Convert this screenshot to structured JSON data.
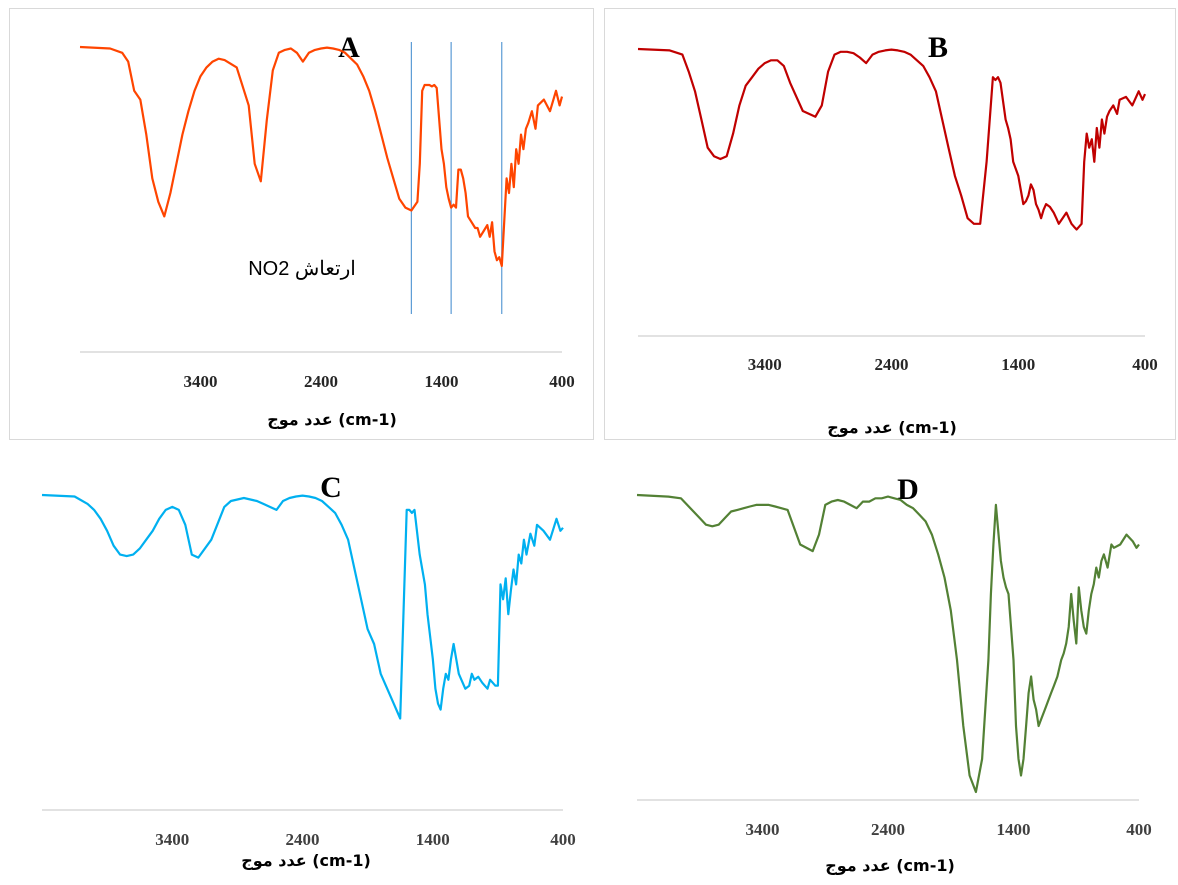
{
  "chart_data": [
    {
      "id": "A",
      "type": "line",
      "title": "A",
      "xlabel": "(cm-1) عدد موج",
      "xlim": [
        4400,
        400
      ],
      "x_ticks": [
        3400,
        2400,
        1400,
        400
      ],
      "x_tick_labels": [
        "3400",
        "2400",
        "1400",
        "400"
      ],
      "grid": false,
      "color": "#FF4500",
      "annotation": "ارتعاش NO2",
      "marker_lines": [
        1650,
        1320,
        900
      ],
      "series": [
        {
          "x": [
            4400,
            4150,
            4050,
            4000,
            3950,
            3900,
            3850,
            3800,
            3750,
            3700,
            3650,
            3600,
            3550,
            3500,
            3450,
            3400,
            3350,
            3300,
            3250,
            3200,
            3100,
            3000,
            2950,
            2900,
            2850,
            2800,
            2750,
            2700,
            2650,
            2600,
            2550,
            2500,
            2450,
            2400,
            2350,
            2300,
            2250,
            2200,
            2150,
            2100,
            2050,
            2000,
            1950,
            1900,
            1850,
            1800,
            1750,
            1700,
            1650,
            1600,
            1580,
            1560,
            1540,
            1500,
            1480,
            1460,
            1440,
            1400,
            1380,
            1360,
            1340,
            1320,
            1300,
            1280,
            1260,
            1240,
            1220,
            1200,
            1180,
            1150,
            1120,
            1100,
            1080,
            1050,
            1020,
            1000,
            980,
            960,
            940,
            920,
            900,
            880,
            860,
            840,
            820,
            800,
            780,
            760,
            740,
            720,
            700,
            680,
            650,
            620,
            600,
            550,
            500,
            450,
            420,
            400
          ],
          "y": [
            100,
            99.5,
            98,
            95,
            85,
            82,
            70,
            55,
            47,
            42,
            50,
            60,
            70,
            78,
            85,
            90,
            93,
            95,
            96,
            95.5,
            93,
            80,
            60,
            54,
            75,
            92,
            98,
            99,
            99.5,
            98,
            95,
            98,
            99,
            99.5,
            99.8,
            99.5,
            99,
            98,
            96,
            94,
            90,
            85,
            78,
            70,
            62,
            55,
            48,
            45,
            44,
            47,
            60,
            85,
            87,
            87,
            86.5,
            87,
            86,
            65,
            60,
            52,
            48,
            45,
            46,
            45,
            58,
            58,
            55,
            50,
            42,
            40,
            38,
            38,
            35,
            37,
            39,
            35,
            40,
            30,
            27,
            28,
            25,
            40,
            55,
            50,
            60,
            52,
            65,
            60,
            70,
            65,
            72,
            74,
            78,
            72,
            80,
            82,
            78,
            85,
            80,
            83
          ]
        }
      ]
    },
    {
      "id": "B",
      "type": "line",
      "title": "B",
      "xlabel": "(cm-1) عدد موج",
      "xlim": [
        4400,
        400
      ],
      "x_ticks": [
        3400,
        2400,
        1400,
        400
      ],
      "x_tick_labels": [
        "3400",
        "2400",
        "1400",
        "400"
      ],
      "grid": false,
      "color": "#C00000",
      "series": [
        {
          "x": [
            4400,
            4150,
            4050,
            4000,
            3950,
            3900,
            3850,
            3800,
            3750,
            3700,
            3650,
            3600,
            3550,
            3500,
            3450,
            3400,
            3350,
            3300,
            3250,
            3200,
            3100,
            3000,
            2950,
            2900,
            2850,
            2800,
            2750,
            2700,
            2650,
            2600,
            2550,
            2500,
            2450,
            2400,
            2350,
            2300,
            2250,
            2200,
            2150,
            2100,
            2050,
            2000,
            1950,
            1900,
            1850,
            1800,
            1750,
            1700,
            1650,
            1600,
            1580,
            1560,
            1540,
            1500,
            1480,
            1460,
            1440,
            1400,
            1380,
            1360,
            1340,
            1320,
            1300,
            1280,
            1260,
            1240,
            1220,
            1200,
            1180,
            1150,
            1120,
            1100,
            1080,
            1050,
            1020,
            1000,
            980,
            960,
            940,
            920,
            900,
            880,
            860,
            840,
            820,
            800,
            780,
            760,
            740,
            720,
            700,
            680,
            650,
            620,
            600,
            550,
            500,
            450,
            420,
            400
          ],
          "y": [
            100,
            99.5,
            98,
            92,
            85,
            75,
            65,
            62,
            61,
            62,
            70,
            80,
            87,
            90,
            93,
            95,
            96,
            96,
            94,
            88,
            78,
            76,
            80,
            92,
            98,
            99,
            99,
            98.5,
            97,
            95,
            98,
            99,
            99.5,
            99.8,
            99.5,
            99,
            98,
            96,
            94,
            90,
            85,
            75,
            65,
            55,
            48,
            40,
            38,
            38,
            60,
            90,
            89,
            90,
            88,
            75,
            72,
            68,
            60,
            55,
            50,
            45,
            46,
            48,
            52,
            50,
            45,
            43,
            40,
            43,
            45,
            44,
            42,
            40,
            38,
            40,
            42,
            40,
            38,
            37,
            36,
            37,
            38,
            60,
            70,
            65,
            68,
            60,
            72,
            65,
            75,
            70,
            76,
            78,
            80,
            77,
            82,
            83,
            80,
            85,
            82,
            84
          ]
        }
      ]
    },
    {
      "id": "C",
      "type": "line",
      "title": "C",
      "xlabel": "(cm-1) عدد موج",
      "xlim": [
        4400,
        400
      ],
      "x_ticks": [
        3400,
        2400,
        1400,
        400
      ],
      "x_tick_labels": [
        "3400",
        "2400",
        "1400",
        "400"
      ],
      "grid": false,
      "color": "#00B0F0",
      "series": [
        {
          "x": [
            4400,
            4150,
            4050,
            4000,
            3950,
            3900,
            3850,
            3800,
            3750,
            3700,
            3650,
            3600,
            3550,
            3500,
            3450,
            3400,
            3350,
            3300,
            3250,
            3200,
            3100,
            3000,
            2950,
            2900,
            2850,
            2800,
            2750,
            2700,
            2650,
            2600,
            2550,
            2500,
            2450,
            2400,
            2350,
            2300,
            2250,
            2200,
            2150,
            2100,
            2050,
            2000,
            1950,
            1900,
            1850,
            1800,
            1750,
            1700,
            1650,
            1600,
            1580,
            1560,
            1540,
            1500,
            1480,
            1460,
            1440,
            1400,
            1380,
            1360,
            1340,
            1320,
            1300,
            1280,
            1260,
            1240,
            1220,
            1200,
            1180,
            1150,
            1120,
            1100,
            1080,
            1050,
            1020,
            1000,
            980,
            960,
            940,
            920,
            900,
            880,
            860,
            840,
            820,
            800,
            780,
            760,
            740,
            720,
            700,
            680,
            650,
            620,
            600,
            550,
            500,
            450,
            420,
            400
          ],
          "y": [
            100,
            99.5,
            97,
            95,
            92,
            88,
            83,
            80,
            79.5,
            80,
            82,
            85,
            88,
            92,
            95,
            96,
            95,
            90,
            80,
            79,
            85,
            96,
            98,
            98.5,
            99,
            98.5,
            98,
            97,
            96,
            95,
            98,
            99,
            99.5,
            99.8,
            99.5,
            99,
            98,
            96,
            94,
            90,
            85,
            75,
            65,
            55,
            50,
            40,
            35,
            30,
            25,
            95,
            95,
            94,
            95,
            80,
            75,
            70,
            60,
            45,
            35,
            30,
            28,
            35,
            40,
            38,
            45,
            50,
            45,
            40,
            38,
            35,
            36,
            40,
            38,
            39,
            37,
            36,
            35,
            38,
            37,
            36,
            36,
            70,
            65,
            72,
            60,
            68,
            75,
            70,
            80,
            77,
            85,
            80,
            87,
            83,
            90,
            88,
            85,
            92,
            88,
            89
          ]
        }
      ]
    },
    {
      "id": "D",
      "type": "line",
      "title": "D",
      "xlabel": "(cm-1) عدد موج",
      "xlim": [
        4400,
        400
      ],
      "x_ticks": [
        3400,
        2400,
        1400,
        400
      ],
      "x_tick_labels": [
        "3400",
        "2400",
        "1400",
        "400"
      ],
      "grid": false,
      "color": "#538135",
      "series": [
        {
          "x": [
            4400,
            4150,
            4050,
            4000,
            3950,
            3900,
            3850,
            3800,
            3750,
            3700,
            3650,
            3600,
            3550,
            3500,
            3450,
            3400,
            3350,
            3300,
            3250,
            3200,
            3100,
            3000,
            2950,
            2900,
            2850,
            2800,
            2750,
            2700,
            2650,
            2600,
            2550,
            2500,
            2450,
            2400,
            2350,
            2300,
            2250,
            2200,
            2150,
            2100,
            2050,
            2000,
            1950,
            1900,
            1850,
            1800,
            1750,
            1700,
            1650,
            1600,
            1580,
            1560,
            1540,
            1500,
            1480,
            1460,
            1440,
            1400,
            1380,
            1360,
            1340,
            1320,
            1300,
            1280,
            1260,
            1240,
            1220,
            1200,
            1180,
            1150,
            1120,
            1100,
            1080,
            1050,
            1020,
            1000,
            980,
            960,
            940,
            920,
            900,
            880,
            860,
            840,
            820,
            800,
            780,
            760,
            740,
            720,
            700,
            680,
            650,
            620,
            600,
            550,
            500,
            450,
            420,
            400
          ],
          "y": [
            100,
            99.5,
            99,
            97,
            95,
            93,
            91,
            90.5,
            91,
            93,
            95,
            95.5,
            96,
            96.5,
            97,
            97,
            97,
            96.5,
            96,
            95.5,
            85,
            83,
            88,
            97,
            98,
            98.5,
            98,
            97,
            96,
            98,
            98,
            99,
            99,
            99.5,
            99,
            98.5,
            97,
            96,
            94,
            92,
            88,
            82,
            75,
            65,
            50,
            30,
            15,
            10,
            20,
            50,
            70,
            85,
            97,
            80,
            75,
            72,
            70,
            50,
            30,
            20,
            15,
            20,
            30,
            40,
            45,
            38,
            35,
            30,
            32,
            35,
            38,
            40,
            42,
            45,
            50,
            52,
            55,
            60,
            70,
            62,
            55,
            72,
            65,
            60,
            58,
            65,
            70,
            73,
            78,
            75,
            80,
            82,
            78,
            85,
            84,
            85,
            88,
            86,
            84,
            85
          ]
        }
      ]
    }
  ]
}
